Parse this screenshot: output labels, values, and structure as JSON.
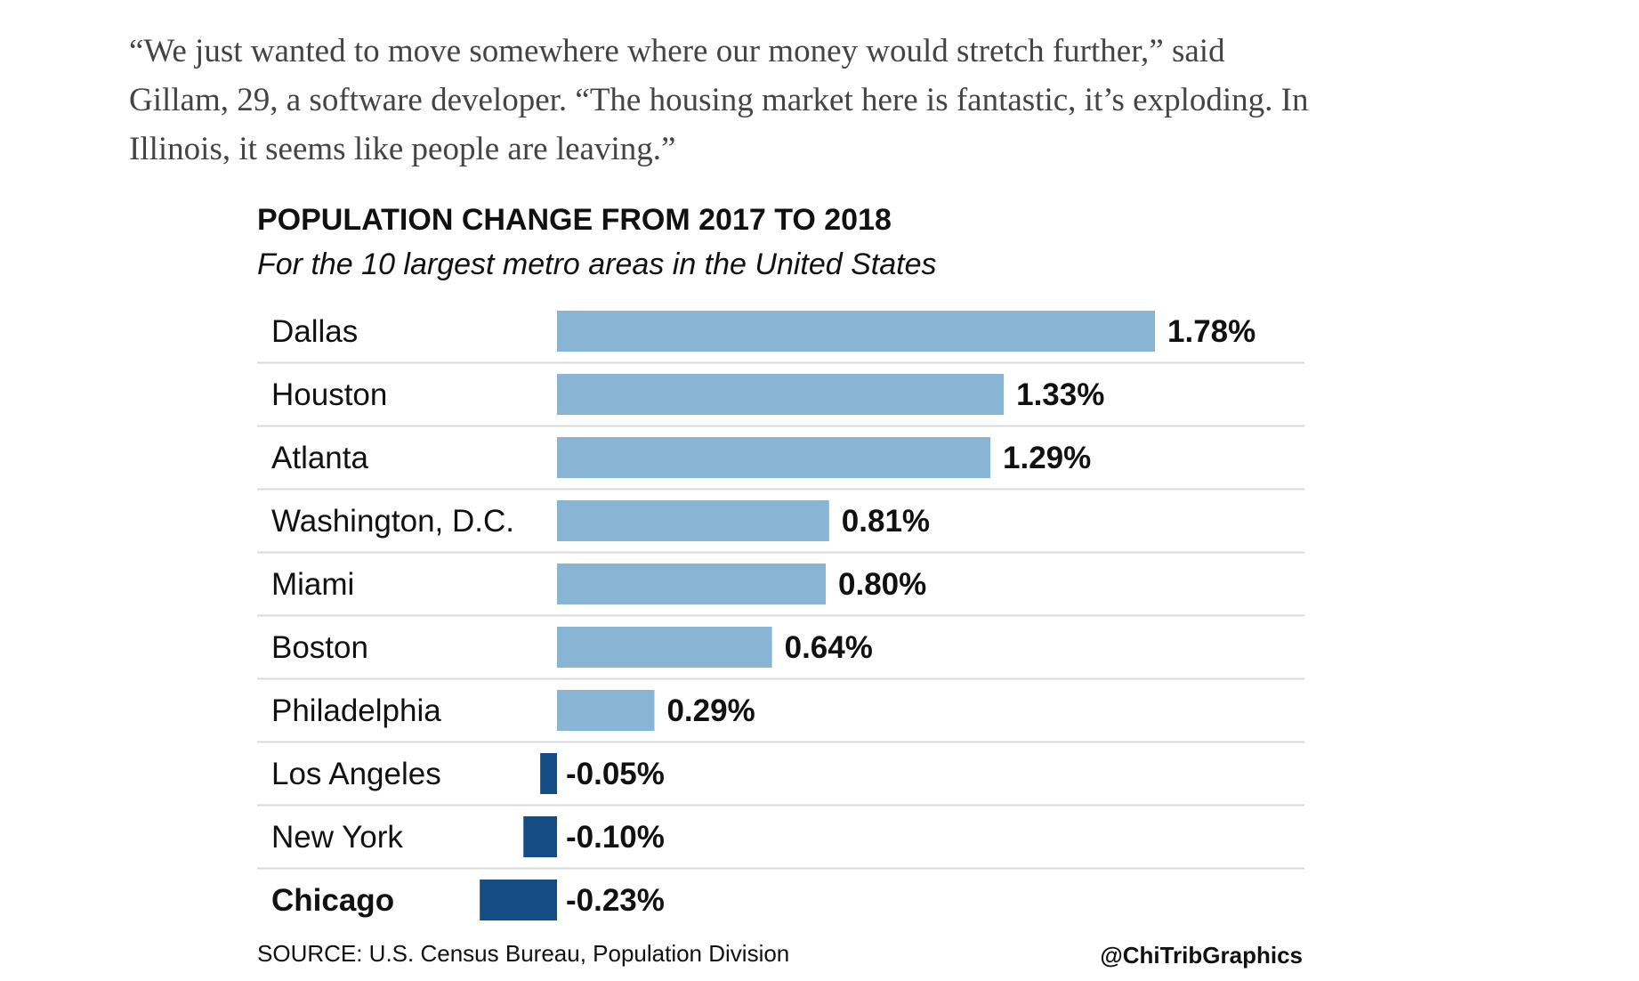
{
  "article": {
    "quote_lines": [
      "“We just wanted to move somewhere where our money would stretch further,” said",
      "Gillam, 29, a software developer. “The housing market here is fantastic, it’s exploding. In",
      "Illinois, it seems like people are leaving.”"
    ]
  },
  "chart_data": {
    "type": "bar",
    "orientation": "horizontal",
    "title": "POPULATION CHANGE FROM 2017 TO 2018",
    "subtitle": "For the 10 largest metro areas in the United States",
    "categories": [
      "Dallas",
      "Houston",
      "Atlanta",
      "Washington, D.C.",
      "Miami",
      "Boston",
      "Philadelphia",
      "Los Angeles",
      "New York",
      "Chicago"
    ],
    "values": [
      1.78,
      1.33,
      1.29,
      0.81,
      0.8,
      0.64,
      0.29,
      -0.05,
      -0.1,
      -0.23
    ],
    "value_labels": [
      "1.78%",
      "1.33%",
      "1.29%",
      "0.81%",
      "0.80%",
      "0.64%",
      "0.29%",
      "-0.05%",
      "-0.10%",
      "-0.23%"
    ],
    "highlight": "Chicago",
    "colors": {
      "positive": "#89b5d5",
      "negative": "#144d85"
    },
    "xlabel": "",
    "ylabel": "",
    "grid": false,
    "source": "SOURCE: U.S. Census Bureau, Population Division",
    "credit": "@ChiTribGraphics"
  }
}
